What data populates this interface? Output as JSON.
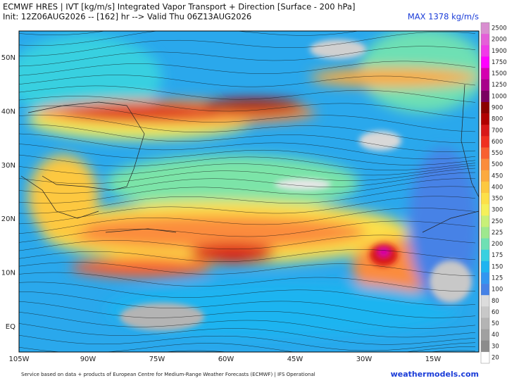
{
  "header": {
    "title": "ECMWF HRES | IVT [kg/m/s] Integrated Vapor Transport + Direction [Surface - 200 hPa]",
    "subtitle": "Init: 12Z06AUG2026 -- [162] hr --> Valid Thu 06Z13AUG2026",
    "max_label": "MAX 1378 kg/m/s"
  },
  "map": {
    "latitude_labels": [
      "50N",
      "40N",
      "30N",
      "20N",
      "10N",
      "EQ"
    ],
    "longitude_labels": [
      "105W",
      "90W",
      "75W",
      "60W",
      "45W",
      "30W",
      "15W"
    ]
  },
  "colorbar": {
    "levels": [
      2500,
      2000,
      1900,
      1750,
      1500,
      1250,
      1000,
      900,
      800,
      700,
      600,
      550,
      500,
      450,
      400,
      350,
      300,
      250,
      225,
      200,
      175,
      150,
      125,
      100,
      80,
      60,
      50,
      40,
      30,
      20
    ],
    "colors": [
      "#d98fd0",
      "#e45fd8",
      "#f03ae8",
      "#ff00ff",
      "#d400b0",
      "#a8008a",
      "#7a0060",
      "#8b0000",
      "#b00000",
      "#d81818",
      "#f03020",
      "#f86030",
      "#fb8c3c",
      "#fcaa3e",
      "#fdc840",
      "#fde048",
      "#f5f05a",
      "#c8f078",
      "#9ee88e",
      "#6ee0b4",
      "#38d0e0",
      "#1eb4f0",
      "#3296f0",
      "#4682e6",
      "#dcdcdc",
      "#c8c8c8",
      "#b4b4b4",
      "#a0a0a0",
      "#8c8c8c",
      "#ffffff"
    ]
  },
  "footer": {
    "credit": "Service based on data + products of European Centre for Medium-Range Weather Forecasts (ECMWF) | IFS Operational",
    "site": "weathermodels.com"
  }
}
